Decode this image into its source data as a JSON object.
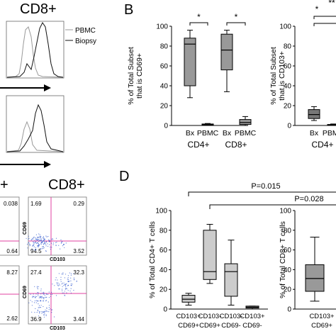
{
  "panels": {
    "flow_title": "CD8+",
    "flow_legend": [
      "PBMC",
      "Biopsy"
    ],
    "label_b": "B",
    "label_d": "D",
    "scatter_title_left": "+",
    "scatter_title_right": "CD8+",
    "scatter_xlabel": "CD103",
    "scatter_ylabel": "CD69",
    "scatter_plots": [
      {
        "tl": "1.69",
        "tr": "0.29",
        "bl": "94.5",
        "br": "3.52"
      },
      {
        "tl": "27.4",
        "tr": "32.3",
        "bl": "36.9",
        "br": "3.44"
      }
    ],
    "scatter_left_values": [
      "0.038",
      "0.64",
      "8.27",
      "2.62"
    ]
  },
  "chart_data": [
    {
      "type": "box",
      "panel": "B-left",
      "ylabel": "% of Total Subset that is CD69+",
      "ylim": [
        0,
        100
      ],
      "yticks": [
        0,
        20,
        40,
        60,
        80,
        100
      ],
      "categories": [
        "Bx",
        "PBMC",
        "Bx",
        "PBMC"
      ],
      "groups": [
        "CD4+",
        "CD8+"
      ],
      "annotations": [
        "*",
        "*"
      ],
      "boxes": [
        {
          "min": 28,
          "q1": 40,
          "median": 82,
          "q3": 88,
          "max": 96
        },
        {
          "min": 0,
          "q1": 0.3,
          "median": 0.8,
          "q3": 1.5,
          "max": 2
        },
        {
          "min": 34,
          "q1": 56,
          "median": 76,
          "q3": 92,
          "max": 96
        },
        {
          "min": 0,
          "q1": 1,
          "median": 3,
          "q3": 6,
          "max": 9
        }
      ]
    },
    {
      "type": "box",
      "panel": "B-right",
      "ylabel": "% of Total Subset that is CD103+",
      "ylim": [
        0,
        100
      ],
      "yticks": [
        0,
        20,
        40,
        60,
        80,
        100
      ],
      "categories": [
        "Bx",
        "PBMC"
      ],
      "groups": [
        "CD4+"
      ],
      "annotations": [
        "*",
        "**"
      ],
      "boxes": [
        {
          "min": 5,
          "q1": 7,
          "median": 11,
          "q3": 16,
          "max": 19
        },
        {
          "min": 0,
          "q1": 0.2,
          "median": 0.5,
          "q3": 1,
          "max": 1.5
        }
      ]
    },
    {
      "type": "box",
      "panel": "D-left",
      "ylabel": "% of Total CD4+ T cells",
      "ylim": [
        0,
        100
      ],
      "yticks": [
        0,
        20,
        40,
        60,
        80,
        100
      ],
      "categories": [
        "CD103+ CD69+",
        "CD103- CD69+",
        "CD103- CD69-",
        "CD103+ CD69-"
      ],
      "annotations": [
        "P=0.015",
        "P=0.028"
      ],
      "boxes": [
        {
          "min": 4,
          "q1": 7,
          "median": 10,
          "q3": 14,
          "max": 16
        },
        {
          "min": 26,
          "q1": 30,
          "median": 38,
          "q3": 80,
          "max": 86
        },
        {
          "min": 4,
          "q1": 13,
          "median": 38,
          "q3": 46,
          "max": 70
        },
        {
          "min": 0,
          "q1": 1,
          "median": 2,
          "q3": 3,
          "max": 3
        }
      ]
    },
    {
      "type": "box",
      "panel": "D-right",
      "ylabel": "% of Total CD8+ T cells",
      "ylim": [
        0,
        100
      ],
      "yticks": [
        0,
        20,
        40,
        60,
        80,
        100
      ],
      "categories": [
        "CD103+ CD69+"
      ],
      "boxes": [
        {
          "min": 8,
          "q1": 18,
          "median": 31,
          "q3": 45,
          "max": 73
        }
      ]
    }
  ]
}
